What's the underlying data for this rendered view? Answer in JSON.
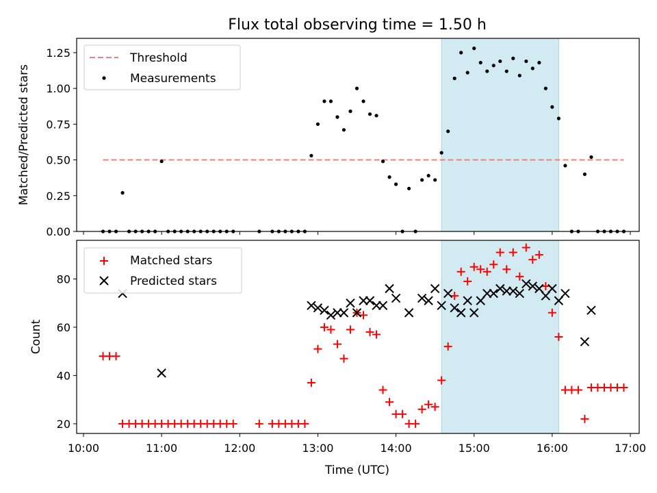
{
  "chart_data": [
    {
      "type": "scatter",
      "title": "Flux total observing time = 1.50 h",
      "ylabel": "Matched/Predicted stars",
      "xlabel": "",
      "xlim": [
        "10:00",
        "17:00"
      ],
      "ylim": [
        0,
        1.35
      ],
      "yticks": [
        0,
        0.25,
        0.5,
        0.75,
        1.0,
        1.25
      ],
      "ytick_labels": [
        "0.00",
        "0.25",
        "0.50",
        "0.75",
        "1.00",
        "1.25"
      ],
      "legend": {
        "position": "top-left",
        "entries": [
          "Threshold",
          "Measurements"
        ]
      },
      "grid": false,
      "shaded_interval": [
        "14:35",
        "16:05"
      ],
      "threshold": {
        "name": "Threshold",
        "value": 0.5,
        "x_start": "10:15",
        "x_end": "16:55",
        "color": "#f08080"
      },
      "series": [
        {
          "name": "Measurements",
          "color": "#000000",
          "x": [
            "10:15",
            "10:20",
            "10:25",
            "10:30",
            "10:35",
            "10:40",
            "10:45",
            "10:50",
            "10:55",
            "11:00",
            "11:05",
            "11:10",
            "11:15",
            "11:20",
            "11:25",
            "11:30",
            "11:35",
            "11:40",
            "11:45",
            "11:50",
            "11:55",
            "12:15",
            "12:25",
            "12:30",
            "12:35",
            "12:40",
            "12:45",
            "12:50",
            "12:55",
            "13:00",
            "13:05",
            "13:10",
            "13:15",
            "13:20",
            "13:25",
            "13:30",
            "13:35",
            "13:40",
            "13:45",
            "13:50",
            "13:55",
            "14:00",
            "14:05",
            "14:10",
            "14:15",
            "14:20",
            "14:25",
            "14:30",
            "14:35",
            "14:40",
            "14:45",
            "14:50",
            "14:55",
            "15:00",
            "15:05",
            "15:10",
            "15:15",
            "15:20",
            "15:25",
            "15:30",
            "15:35",
            "15:40",
            "15:45",
            "15:50",
            "15:55",
            "16:00",
            "16:05",
            "16:10",
            "16:15",
            "16:20",
            "16:25",
            "16:30",
            "16:35",
            "16:40",
            "16:45",
            "16:50",
            "16:55"
          ],
          "y": [
            0,
            0,
            0,
            0.27,
            0,
            0,
            0,
            0,
            0,
            0.49,
            0,
            0,
            0,
            0,
            0,
            0,
            0,
            0,
            0,
            0,
            0,
            0,
            0,
            0,
            0,
            0,
            0,
            0,
            0.53,
            0.75,
            0.91,
            0.91,
            0.8,
            0.71,
            0.84,
            1.0,
            0.91,
            0.82,
            0.81,
            0.49,
            0.38,
            0.33,
            0,
            0.3,
            0,
            0.36,
            0.39,
            0.36,
            0.55,
            0.7,
            1.07,
            1.25,
            1.11,
            1.28,
            1.18,
            1.12,
            1.16,
            1.19,
            1.12,
            1.21,
            1.09,
            1.19,
            1.14,
            1.18,
            1.0,
            0.87,
            0.79,
            0.46,
            0,
            0,
            0.4,
            0.52,
            0,
            0,
            0,
            0,
            0
          ]
        }
      ]
    },
    {
      "type": "scatter",
      "title": "",
      "ylabel": "Count",
      "xlabel": "Time (UTC)",
      "xlim": [
        "10:00",
        "17:00"
      ],
      "ylim": [
        16,
        96
      ],
      "yticks": [
        20,
        40,
        60,
        80
      ],
      "ytick_labels": [
        "20",
        "40",
        "60",
        "80"
      ],
      "xticks": [
        "10:00",
        "11:00",
        "12:00",
        "13:00",
        "14:00",
        "15:00",
        "16:00",
        "17:00"
      ],
      "xtick_labels": [
        "10:00",
        "11:00",
        "12:00",
        "13:00",
        "14:00",
        "15:00",
        "16:00",
        "17:00"
      ],
      "legend": {
        "position": "top-left",
        "entries": [
          "Matched stars",
          "Predicted stars"
        ]
      },
      "grid": false,
      "shaded_interval": [
        "14:35",
        "16:05"
      ],
      "series": [
        {
          "name": "Matched stars",
          "marker": "plus",
          "color": "#ff0000",
          "x": [
            "10:15",
            "10:20",
            "10:25",
            "10:30",
            "10:35",
            "10:40",
            "10:45",
            "10:50",
            "10:55",
            "11:00",
            "11:05",
            "11:10",
            "11:15",
            "11:20",
            "11:25",
            "11:30",
            "11:35",
            "11:40",
            "11:45",
            "11:50",
            "11:55",
            "12:15",
            "12:25",
            "12:30",
            "12:35",
            "12:40",
            "12:45",
            "12:50",
            "12:55",
            "13:00",
            "13:05",
            "13:10",
            "13:15",
            "13:20",
            "13:25",
            "13:30",
            "13:35",
            "13:40",
            "13:45",
            "13:50",
            "13:55",
            "14:00",
            "14:05",
            "14:10",
            "14:15",
            "14:20",
            "14:25",
            "14:30",
            "14:35",
            "14:40",
            "14:45",
            "14:50",
            "14:55",
            "15:00",
            "15:05",
            "15:10",
            "15:15",
            "15:20",
            "15:25",
            "15:30",
            "15:35",
            "15:40",
            "15:45",
            "15:50",
            "15:55",
            "16:00",
            "16:05",
            "16:10",
            "16:15",
            "16:20",
            "16:25",
            "16:30",
            "16:35",
            "16:40",
            "16:45",
            "16:50",
            "16:55"
          ],
          "y": [
            48,
            48,
            48,
            20,
            20,
            20,
            20,
            20,
            20,
            20,
            20,
            20,
            20,
            20,
            20,
            20,
            20,
            20,
            20,
            20,
            20,
            20,
            20,
            20,
            20,
            20,
            20,
            20,
            37,
            51,
            60,
            59,
            53,
            47,
            59,
            66,
            65,
            58,
            57,
            34,
            29,
            24,
            24,
            20,
            20,
            26,
            28,
            27,
            38,
            52,
            73,
            83,
            79,
            85,
            84,
            83,
            86,
            91,
            84,
            91,
            81,
            93,
            88,
            90,
            77,
            66,
            56,
            34,
            34,
            34,
            22,
            35,
            35,
            35,
            35,
            35,
            35
          ]
        },
        {
          "name": "Predicted stars",
          "marker": "x",
          "color": "#000000",
          "x": [
            "10:30",
            "11:00",
            "12:55",
            "13:00",
            "13:05",
            "13:10",
            "13:15",
            "13:20",
            "13:25",
            "13:30",
            "13:35",
            "13:40",
            "13:45",
            "13:50",
            "13:55",
            "14:00",
            "14:05",
            "14:10",
            "14:15",
            "14:20",
            "14:25",
            "14:30",
            "14:35",
            "14:40",
            "14:45",
            "14:50",
            "14:55",
            "15:00",
            "15:05",
            "15:10",
            "15:15",
            "15:20",
            "15:25",
            "15:30",
            "15:35",
            "15:40",
            "15:45",
            "15:50",
            "15:55",
            "16:00",
            "16:05",
            "16:10",
            "16:15",
            "16:20",
            "16:25",
            "16:30",
            "16:35"
          ],
          "y": [
            74,
            41,
            69,
            68,
            67,
            65,
            66,
            66,
            70,
            66,
            71,
            71,
            69,
            69,
            76,
            72,
            null,
            66,
            null,
            72,
            71,
            76,
            69,
            74,
            68,
            66,
            71,
            66,
            71,
            74,
            74,
            76,
            75,
            75,
            74,
            78,
            77,
            76,
            73,
            76,
            71,
            74,
            null,
            null,
            54,
            67,
            null
          ]
        }
      ]
    }
  ]
}
